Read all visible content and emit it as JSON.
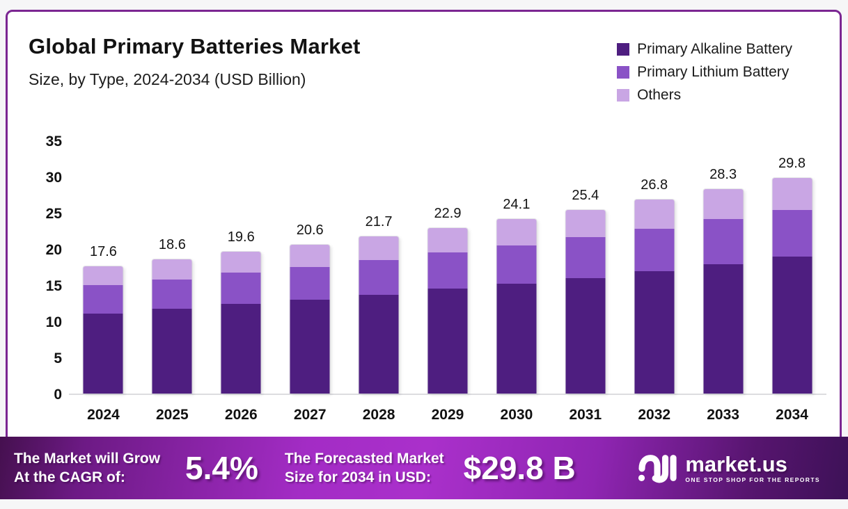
{
  "header": {
    "title": "Global Primary Batteries Market",
    "subtitle": "Size, by Type, 2024-2034 (USD Billion)"
  },
  "legend": [
    {
      "label": "Primary Alkaline Battery",
      "color": "#4e1e80"
    },
    {
      "label": "Primary Lithium Battery",
      "color": "#8a52c6"
    },
    {
      "label": "Others",
      "color": "#c9a6e4"
    }
  ],
  "chart_data": {
    "type": "bar",
    "stacked": true,
    "title": "Global Primary Batteries Market Size, by Type, 2024-2034 (USD Billion)",
    "categories": [
      "2024",
      "2025",
      "2026",
      "2027",
      "2028",
      "2029",
      "2030",
      "2031",
      "2032",
      "2033",
      "2034"
    ],
    "series": [
      {
        "name": "Primary Alkaline Battery",
        "color": "#4e1e80",
        "values": [
          11.1,
          11.7,
          12.4,
          13.0,
          13.7,
          14.5,
          15.2,
          16.0,
          16.9,
          17.9,
          18.9
        ]
      },
      {
        "name": "Primary Lithium Battery",
        "color": "#8a52c6",
        "values": [
          3.9,
          4.1,
          4.3,
          4.5,
          4.8,
          5.0,
          5.3,
          5.6,
          5.9,
          6.2,
          6.5
        ]
      },
      {
        "name": "Others",
        "color": "#c9a6e4",
        "values": [
          2.6,
          2.8,
          2.9,
          3.1,
          3.2,
          3.4,
          3.6,
          3.8,
          4.0,
          4.2,
          4.4
        ]
      }
    ],
    "totals": [
      17.6,
      18.6,
      19.6,
      20.6,
      21.7,
      22.9,
      24.1,
      25.4,
      26.8,
      28.3,
      29.8
    ],
    "total_labels": [
      "17.6",
      "18.6",
      "19.6",
      "20.6",
      "21.7",
      "22.9",
      "24.1",
      "25.4",
      "26.8",
      "28.3",
      "29.8"
    ],
    "xlabel": "",
    "ylabel": "",
    "ylim": [
      0,
      35
    ],
    "yticks": [
      0,
      5,
      10,
      15,
      20,
      25,
      30,
      35
    ],
    "grid": false,
    "legend_position": "top-right"
  },
  "banner": {
    "cagr_label_line1": "The Market will Grow",
    "cagr_label_line2": "At the CAGR of:",
    "cagr_value": "5.4%",
    "forecast_label_line1": "The Forecasted Market",
    "forecast_label_line2": "Size for 2034 in USD:",
    "forecast_value": "$29.8 B",
    "brand": {
      "name": "market.us",
      "tagline": "ONE STOP SHOP FOR THE REPORTS",
      "icon": "market-us-logo-icon"
    }
  },
  "colors": {
    "card_border": "#7b2692",
    "banner_gradient_start": "#45104f",
    "banner_gradient_mid": "#aa30cb",
    "banner_gradient_end": "#3d1157",
    "axis_line": "#dcdce0"
  }
}
